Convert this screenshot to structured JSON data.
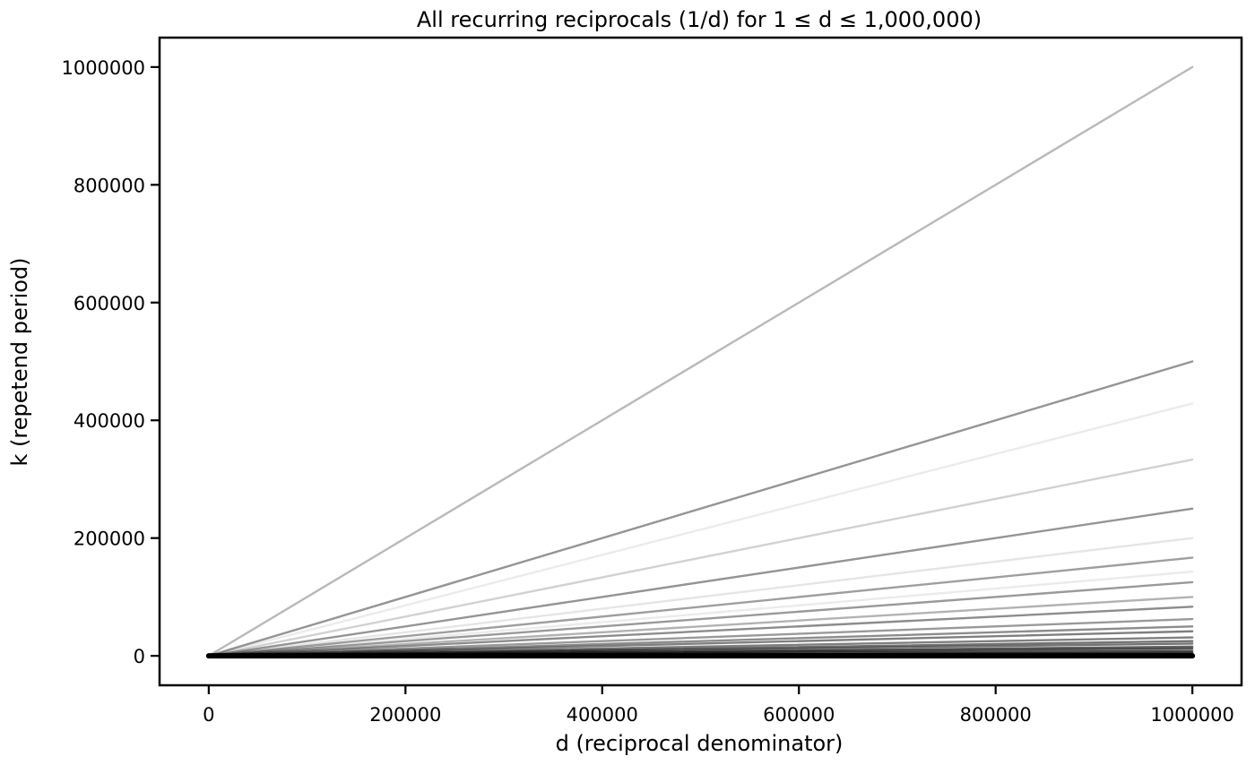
{
  "chart_data": {
    "type": "scatter",
    "title": "All recurring reciprocals (1/d) for 1 ≤ d ≤ 1,000,000)",
    "xlabel": "d (reciprocal denominator)",
    "ylabel": "k (repetend period)",
    "xlim": [
      -50000,
      1050000
    ],
    "ylim": [
      -50000,
      1050000
    ],
    "xticks": [
      0,
      200000,
      400000,
      600000,
      800000,
      1000000
    ],
    "yticks": [
      0,
      200000,
      400000,
      600000,
      800000,
      1000000
    ],
    "xtick_labels": [
      "0",
      "200000",
      "400000",
      "600000",
      "800000",
      "1000000"
    ],
    "ytick_labels": [
      "0",
      "200000",
      "400000",
      "600000",
      "800000",
      "1000000"
    ],
    "grid": false,
    "legend": "none",
    "point_color": "#000000",
    "series": [
      {
        "x": [
          0,
          1000000
        ],
        "values": [
          0,
          1000000
        ],
        "opacity": 0.28
      },
      {
        "x": [
          0,
          1000000
        ],
        "values": [
          0,
          500000
        ],
        "opacity": 0.42
      },
      {
        "x": [
          0,
          1000000
        ],
        "values": [
          0,
          428571
        ],
        "opacity": 0.08
      },
      {
        "x": [
          0,
          1000000
        ],
        "values": [
          0,
          333333
        ],
        "opacity": 0.18
      },
      {
        "x": [
          0,
          1000000
        ],
        "values": [
          0,
          250000
        ],
        "opacity": 0.42
      },
      {
        "x": [
          0,
          1000000
        ],
        "values": [
          0,
          200000
        ],
        "opacity": 0.1
      },
      {
        "x": [
          0,
          1000000
        ],
        "values": [
          0,
          166667
        ],
        "opacity": 0.38
      },
      {
        "x": [
          0,
          1000000
        ],
        "values": [
          0,
          142857
        ],
        "opacity": 0.08
      },
      {
        "x": [
          0,
          1000000
        ],
        "values": [
          0,
          125000
        ],
        "opacity": 0.4
      },
      {
        "x": [
          0,
          1000000
        ],
        "values": [
          0,
          100000
        ],
        "opacity": 0.3
      },
      {
        "x": [
          0,
          1000000
        ],
        "values": [
          0,
          83333
        ],
        "opacity": 0.45
      },
      {
        "x": [
          0,
          1000000
        ],
        "values": [
          0,
          62500
        ],
        "opacity": 0.4
      },
      {
        "x": [
          0,
          1000000
        ],
        "values": [
          0,
          50000
        ],
        "opacity": 0.45
      },
      {
        "x": [
          0,
          1000000
        ],
        "values": [
          0,
          41667
        ],
        "opacity": 0.5
      },
      {
        "x": [
          0,
          1000000
        ],
        "values": [
          0,
          31250
        ],
        "opacity": 0.5
      },
      {
        "x": [
          0,
          1000000
        ],
        "values": [
          0,
          25000
        ],
        "opacity": 0.55
      },
      {
        "x": [
          0,
          1000000
        ],
        "values": [
          0,
          20833
        ],
        "opacity": 0.55
      },
      {
        "x": [
          0,
          1000000
        ],
        "values": [
          0,
          15625
        ],
        "opacity": 0.6
      },
      {
        "x": [
          0,
          1000000
        ],
        "values": [
          0,
          12500
        ],
        "opacity": 0.65
      },
      {
        "x": [
          0,
          1000000
        ],
        "values": [
          0,
          8333
        ],
        "opacity": 0.7
      },
      {
        "x": [
          0,
          1000000
        ],
        "values": [
          0,
          5000
        ],
        "opacity": 0.8
      },
      {
        "x": [
          0,
          1000000
        ],
        "values": [
          0,
          2500
        ],
        "opacity": 0.9
      },
      {
        "x": [
          0,
          1000000
        ],
        "values": [
          0,
          0
        ],
        "opacity": 1.0
      }
    ]
  }
}
